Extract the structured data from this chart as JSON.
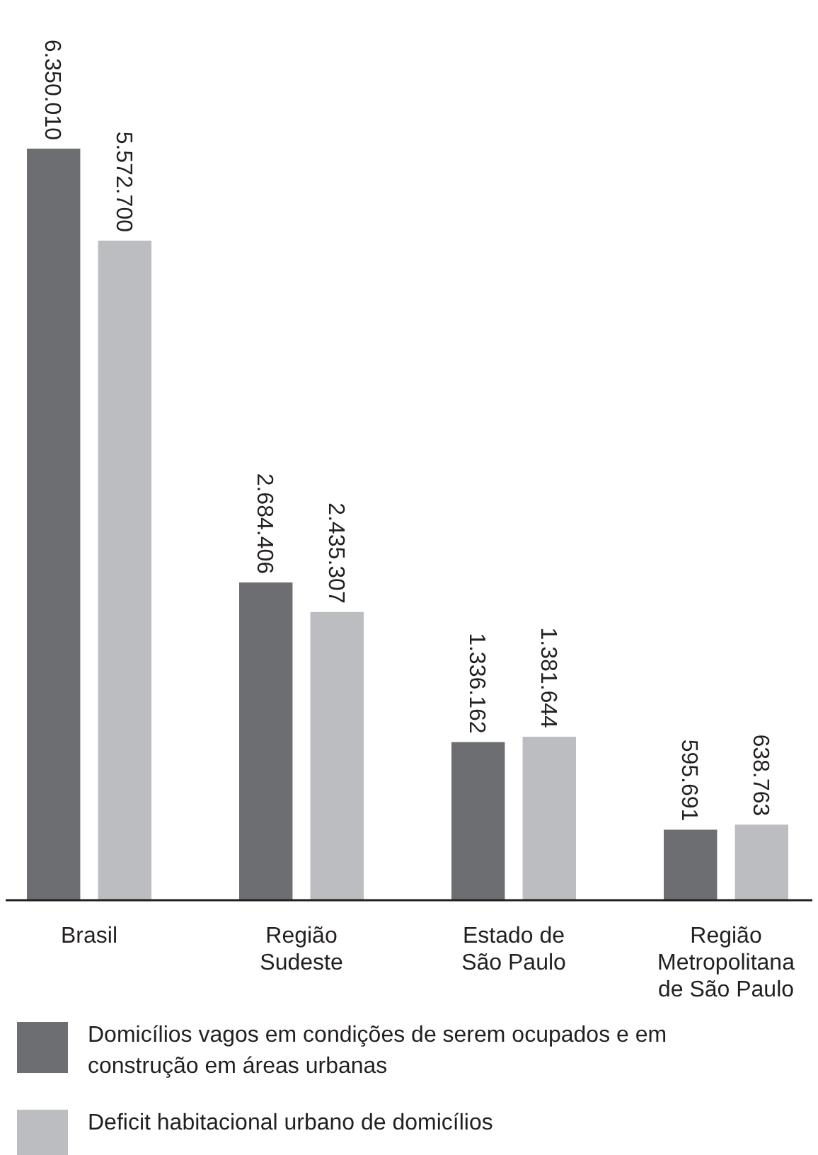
{
  "chart_data": {
    "type": "bar",
    "categories": [
      "Brasil",
      "Região Sudeste",
      "Estado de São Paulo",
      "Região Metropolitana de São Paulo"
    ],
    "series": [
      {
        "name": "Domicílios vagos em condições de serem ocupados e em construção em áreas urbanas",
        "color": "#6d6e71",
        "values": [
          6350010,
          2684406,
          1336162,
          595691
        ],
        "value_labels": [
          "6.350.010",
          "2.684.406",
          "1.336.162",
          "595.691"
        ]
      },
      {
        "name": "Deficit habitacional urbano de domicílios",
        "color": "#bcbdc0",
        "values": [
          5572700,
          2435307,
          1381644,
          638763
        ],
        "value_labels": [
          "5.572.700",
          "2.435.307",
          "1.381.644",
          "638.763"
        ]
      }
    ],
    "legend": "bottom"
  }
}
